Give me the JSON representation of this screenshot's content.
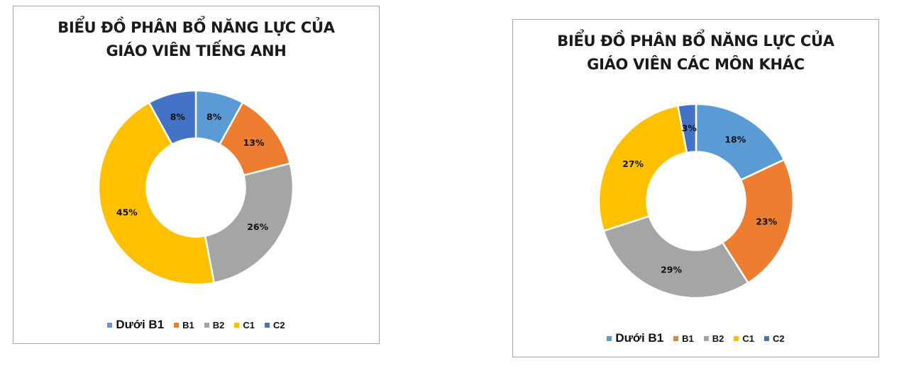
{
  "colors": {
    "duoi_b1": "#5B9BD5",
    "b1": "#ED7D31",
    "b2": "#A5A5A5",
    "c1": "#FFC000",
    "c2": "#4472C4"
  },
  "legend": [
    {
      "label": "Dưới B1",
      "color": "#5B9BD5"
    },
    {
      "label": "B1",
      "color": "#ED7D31"
    },
    {
      "label": "B2",
      "color": "#A5A5A5"
    },
    {
      "label": "C1",
      "color": "#FFC000"
    },
    {
      "label": "C2",
      "color": "#4472C4"
    }
  ],
  "charts": [
    {
      "title_line1": "BIỂU ĐỒ PHÂN BỔ NĂNG LỰC CỦA",
      "title_line2": "GIÁO VIÊN TIẾNG ANH"
    },
    {
      "title_line1": "BIỂU ĐỒ PHÂN BỔ NĂNG LỰC CỦA",
      "title_line2": "GIÁO VIÊN CÁC MÔN KHÁC"
    }
  ],
  "chart_data": [
    {
      "type": "pie",
      "subtype": "donut",
      "title": "BIỂU ĐỒ PHÂN BỔ NĂNG LỰC CỦA GIÁO VIÊN TIẾNG ANH",
      "categories": [
        "Dưới B1",
        "B1",
        "B2",
        "C1",
        "C2"
      ],
      "values": [
        8,
        13,
        26,
        45,
        8
      ],
      "labels": [
        "8%",
        "13%",
        "26%",
        "45%",
        "8%"
      ],
      "unit": "%",
      "legend_position": "bottom"
    },
    {
      "type": "pie",
      "subtype": "donut",
      "title": "BIỂU ĐỒ PHÂN BỔ NĂNG LỰC CỦA GIÁO VIÊN CÁC MÔN KHÁC",
      "categories": [
        "Dưới B1",
        "B1",
        "B2",
        "C1",
        "C2"
      ],
      "values": [
        18,
        23,
        29,
        27,
        3
      ],
      "labels": [
        "18%",
        "23%",
        "29%",
        "27%",
        "3%"
      ],
      "unit": "%",
      "legend_position": "bottom"
    }
  ]
}
